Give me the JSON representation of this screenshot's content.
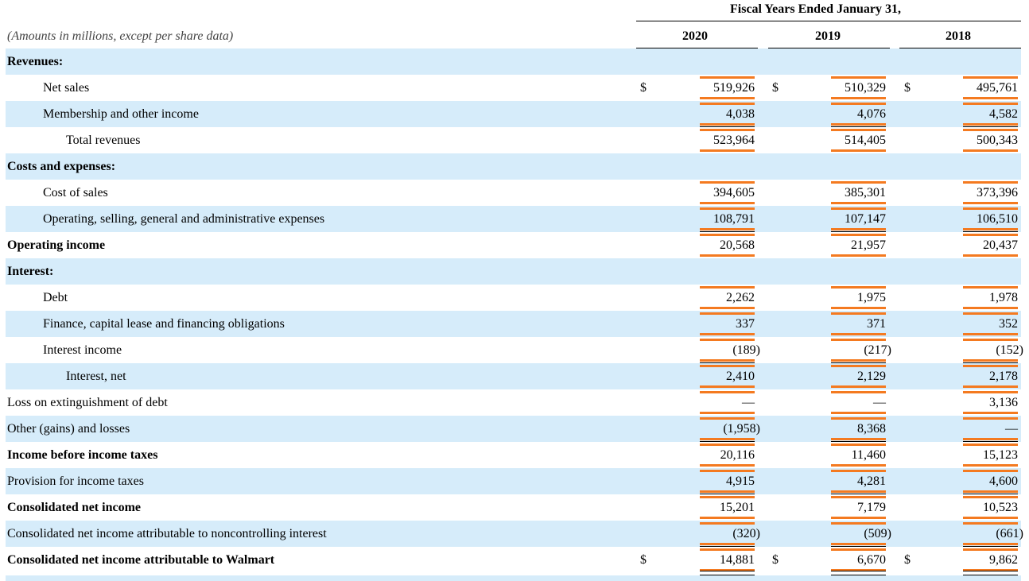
{
  "header": {
    "title": "Fiscal Years Ended January 31,",
    "subtitle": "(Amounts in millions, except per share data)",
    "years": [
      "2020",
      "2019",
      "2018"
    ]
  },
  "rows": [
    {
      "label": "Revenues:",
      "indent": 0,
      "bold": true,
      "shaded": true,
      "values": [
        "",
        "",
        ""
      ],
      "dollar": false,
      "rule": false,
      "double": false
    },
    {
      "label": "Net sales",
      "indent": 1,
      "bold": false,
      "shaded": false,
      "values": [
        "519,926",
        "510,329",
        "495,761"
      ],
      "dollar": true,
      "rule": false,
      "double": false
    },
    {
      "label": "Membership and other income",
      "indent": 1,
      "bold": false,
      "shaded": true,
      "values": [
        "4,038",
        "4,076",
        "4,582"
      ],
      "dollar": false,
      "rule": false,
      "double": false
    },
    {
      "label": "Total revenues",
      "indent": 2,
      "bold": false,
      "shaded": false,
      "values": [
        "523,964",
        "514,405",
        "500,343"
      ],
      "dollar": false,
      "rule": true,
      "double": false
    },
    {
      "label": "Costs and expenses:",
      "indent": 0,
      "bold": true,
      "shaded": true,
      "values": [
        "",
        "",
        ""
      ],
      "dollar": false,
      "rule": false,
      "double": false
    },
    {
      "label": "Cost of sales",
      "indent": 1,
      "bold": false,
      "shaded": false,
      "values": [
        "394,605",
        "385,301",
        "373,396"
      ],
      "dollar": false,
      "rule": false,
      "double": false
    },
    {
      "label": "Operating, selling, general and administrative expenses",
      "indent": 1,
      "bold": false,
      "shaded": true,
      "values": [
        "108,791",
        "107,147",
        "106,510"
      ],
      "dollar": false,
      "rule": false,
      "double": false
    },
    {
      "label": "Operating income",
      "indent": 0,
      "bold": true,
      "shaded": false,
      "values": [
        "20,568",
        "21,957",
        "20,437"
      ],
      "dollar": false,
      "rule": true,
      "double": false
    },
    {
      "label": "Interest:",
      "indent": 0,
      "bold": true,
      "shaded": true,
      "values": [
        "",
        "",
        ""
      ],
      "dollar": false,
      "rule": false,
      "double": false
    },
    {
      "label": "Debt",
      "indent": 1,
      "bold": false,
      "shaded": false,
      "values": [
        "2,262",
        "1,975",
        "1,978"
      ],
      "dollar": false,
      "rule": false,
      "double": false
    },
    {
      "label": "Finance, capital lease and financing obligations",
      "indent": 1,
      "bold": false,
      "shaded": true,
      "values": [
        "337",
        "371",
        "352"
      ],
      "dollar": false,
      "rule": false,
      "double": false
    },
    {
      "label": "Interest income",
      "indent": 1,
      "bold": false,
      "shaded": false,
      "values": [
        "(189)",
        "(217)",
        "(152)"
      ],
      "dollar": false,
      "rule": false,
      "double": false
    },
    {
      "label": "Interest, net",
      "indent": 2,
      "bold": false,
      "shaded": true,
      "values": [
        "2,410",
        "2,129",
        "2,178"
      ],
      "dollar": false,
      "rule": true,
      "double": false
    },
    {
      "label": "Loss on extinguishment of debt",
      "indent": 0,
      "bold": false,
      "shaded": false,
      "values": [
        "—",
        "—",
        "3,136"
      ],
      "dollar": false,
      "rule": false,
      "double": false
    },
    {
      "label": "Other (gains) and losses",
      "indent": 0,
      "bold": false,
      "shaded": true,
      "values": [
        "(1,958)",
        "8,368",
        "—"
      ],
      "dollar": false,
      "rule": false,
      "double": false
    },
    {
      "label": "Income before income taxes",
      "indent": 0,
      "bold": true,
      "shaded": false,
      "values": [
        "20,116",
        "11,460",
        "15,123"
      ],
      "dollar": false,
      "rule": true,
      "double": false
    },
    {
      "label": "Provision for income taxes",
      "indent": 0,
      "bold": false,
      "shaded": true,
      "values": [
        "4,915",
        "4,281",
        "4,600"
      ],
      "dollar": false,
      "rule": false,
      "double": false
    },
    {
      "label": "Consolidated net income",
      "indent": 0,
      "bold": true,
      "shaded": false,
      "values": [
        "15,201",
        "7,179",
        "10,523"
      ],
      "dollar": false,
      "rule": true,
      "double": false
    },
    {
      "label": "Consolidated net income attributable to noncontrolling interest",
      "indent": 0,
      "bold": false,
      "shaded": true,
      "values": [
        "(320)",
        "(509)",
        "(661)"
      ],
      "dollar": false,
      "rule": false,
      "double": false
    },
    {
      "label": "Consolidated net income attributable to Walmart",
      "indent": 0,
      "bold": true,
      "shaded": false,
      "values": [
        "14,881",
        "6,670",
        "9,862"
      ],
      "dollar": true,
      "rule": true,
      "double": true
    }
  ],
  "currency_symbol": "$",
  "colors": {
    "row_shade": "#d6ecfa",
    "highlight": "#f47a20"
  }
}
